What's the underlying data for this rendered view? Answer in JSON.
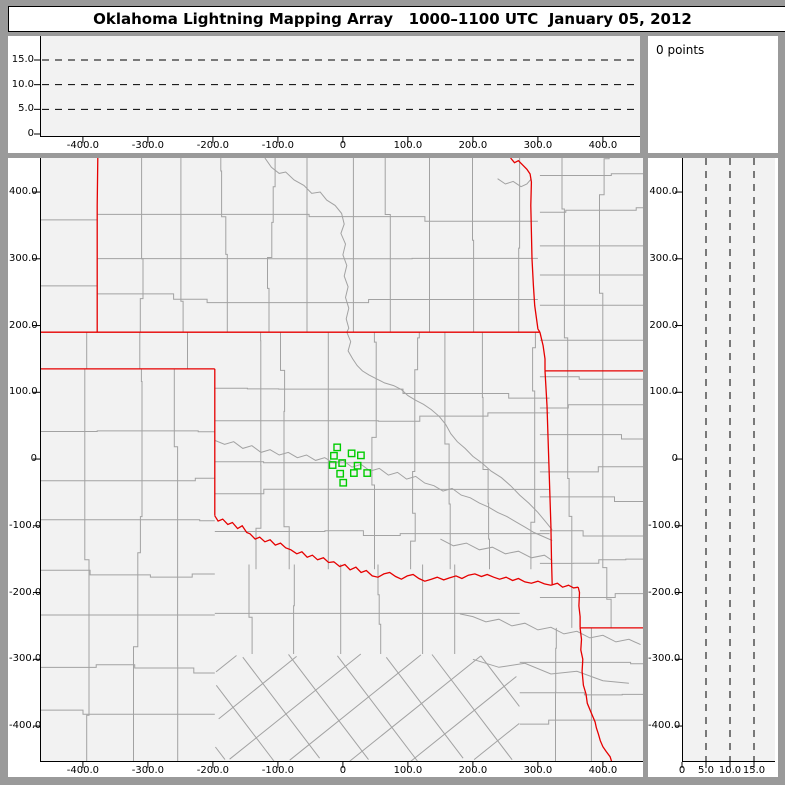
{
  "title": "Oklahoma Lightning Mapping Array   1000–1100 UTC  January 05, 2012",
  "points_panel": {
    "label": "0 points"
  },
  "colors": {
    "frame": "#9a9a9a",
    "panel": "#ffffff",
    "plot_bg": "#f2f2f2",
    "county": "#a2a2a2",
    "state_border": "#e60000",
    "station": "#00cc00",
    "ink": "#000000"
  },
  "ew_axis": {
    "tick_values": [
      -400,
      -300,
      -200,
      -100,
      0,
      100,
      200,
      300,
      400
    ],
    "tick_labels": [
      "-400.0",
      "-300.0",
      "-200.0",
      "-100.0",
      "0",
      "100.0",
      "200.0",
      "300.0",
      "400.0"
    ],
    "range_km": [
      -466,
      462
    ]
  },
  "ns_axis": {
    "tick_values": [
      400,
      300,
      200,
      100,
      0,
      -100,
      -200,
      -300,
      -400
    ],
    "tick_labels": [
      "400.0",
      "300.0",
      "200.0",
      "100.0",
      "0",
      "-100.0",
      "-200.0",
      "-300.0",
      "-400.0"
    ],
    "range_km": [
      -454,
      451
    ]
  },
  "alt_axis": {
    "tick_values": [
      0,
      5,
      10,
      15
    ],
    "tick_labels": [
      "0",
      "5.0",
      "10.0",
      "15.0"
    ],
    "dashed_values": [
      5,
      10,
      15
    ],
    "range_km": [
      0,
      20
    ]
  },
  "map": {
    "state_borders": [
      [
        [
          -377,
          451
        ],
        [
          -378,
          380
        ],
        [
          -378,
          300
        ],
        [
          -378,
          190
        ]
      ],
      [
        [
          -466,
          190
        ],
        [
          303,
          190
        ]
      ],
      [
        [
          -466,
          135
        ],
        [
          -197,
          135
        ]
      ],
      [
        [
          -197,
          135
        ],
        [
          -197,
          -85
        ]
      ],
      [
        [
          -197,
          -85
        ],
        [
          -192,
          -93
        ],
        [
          -185,
          -90
        ],
        [
          -177,
          -98
        ],
        [
          -170,
          -95
        ],
        [
          -162,
          -104
        ],
        [
          -155,
          -100
        ],
        [
          -148,
          -110
        ],
        [
          -143,
          -112
        ],
        [
          -135,
          -120
        ],
        [
          -128,
          -117
        ],
        [
          -120,
          -124
        ],
        [
          -112,
          -121
        ],
        [
          -104,
          -129
        ],
        [
          -96,
          -126
        ],
        [
          -88,
          -133
        ],
        [
          -80,
          -136
        ],
        [
          -71,
          -142
        ],
        [
          -63,
          -139
        ],
        [
          -55,
          -147
        ],
        [
          -47,
          -144
        ],
        [
          -39,
          -151
        ],
        [
          -30,
          -148
        ],
        [
          -22,
          -155
        ],
        [
          -14,
          -154
        ],
        [
          -5,
          -161
        ],
        [
          3,
          -158
        ],
        [
          11,
          -166
        ],
        [
          20,
          -162
        ],
        [
          28,
          -170
        ],
        [
          36,
          -167
        ],
        [
          45,
          -175
        ],
        [
          54,
          -177
        ],
        [
          63,
          -172
        ],
        [
          72,
          -170
        ],
        [
          81,
          -176
        ],
        [
          90,
          -180
        ],
        [
          99,
          -175
        ],
        [
          108,
          -173
        ],
        [
          117,
          -179
        ],
        [
          126,
          -183
        ],
        [
          136,
          -180
        ],
        [
          145,
          -177
        ],
        [
          155,
          -181
        ],
        [
          164,
          -178
        ],
        [
          174,
          -175
        ],
        [
          183,
          -179
        ],
        [
          193,
          -174
        ],
        [
          203,
          -172
        ],
        [
          213,
          -176
        ],
        [
          222,
          -173
        ],
        [
          232,
          -177
        ],
        [
          241,
          -180
        ],
        [
          251,
          -177
        ],
        [
          261,
          -182
        ],
        [
          270,
          -179
        ],
        [
          280,
          -184
        ],
        [
          290,
          -186
        ],
        [
          300,
          -183
        ],
        [
          310,
          -187
        ],
        [
          320,
          -189
        ],
        [
          330,
          -186
        ],
        [
          338,
          -192
        ],
        [
          347,
          -189
        ],
        [
          355,
          -193
        ],
        [
          362,
          -192
        ]
      ],
      [
        [
          258,
          451
        ],
        [
          264,
          444
        ],
        [
          270,
          447
        ],
        [
          277,
          440
        ],
        [
          283,
          434
        ],
        [
          288,
          427
        ],
        [
          290,
          415
        ],
        [
          289,
          380
        ],
        [
          290,
          340
        ],
        [
          291,
          300
        ],
        [
          293,
          260
        ],
        [
          295,
          230
        ],
        [
          300,
          195
        ],
        [
          303,
          190
        ]
      ],
      [
        [
          303,
          190
        ],
        [
          308,
          170
        ],
        [
          311,
          150
        ],
        [
          311,
          132
        ]
      ],
      [
        [
          311,
          132
        ],
        [
          462,
          132
        ]
      ],
      [
        [
          311,
          132
        ],
        [
          314,
          80
        ],
        [
          316,
          20
        ],
        [
          318,
          -40
        ],
        [
          320,
          -100
        ],
        [
          321,
          -150
        ],
        [
          322,
          -189
        ]
      ],
      [
        [
          362,
          -192
        ],
        [
          364,
          -200
        ],
        [
          363,
          -220
        ],
        [
          365,
          -236
        ],
        [
          365,
          -253
        ]
      ],
      [
        [
          365,
          -253
        ],
        [
          462,
          -253
        ]
      ],
      [
        [
          365,
          -253
        ],
        [
          367,
          -270
        ],
        [
          366,
          -286
        ],
        [
          369,
          -300
        ],
        [
          368,
          -318
        ],
        [
          370,
          -339
        ],
        [
          374,
          -352
        ],
        [
          376,
          -366
        ],
        [
          382,
          -380
        ],
        [
          388,
          -394
        ],
        [
          390,
          -403
        ],
        [
          393,
          -412
        ],
        [
          396,
          -422
        ],
        [
          400,
          -431
        ],
        [
          405,
          -438
        ],
        [
          411,
          -446
        ],
        [
          413,
          -452
        ],
        [
          416,
          -462
        ]
      ]
    ],
    "rivers": [
      [
        [
          -120,
          451
        ],
        [
          -110,
          437
        ],
        [
          -98,
          428
        ],
        [
          -88,
          430
        ],
        [
          -75,
          418
        ],
        [
          -60,
          410
        ],
        [
          -48,
          398
        ],
        [
          -35,
          400
        ],
        [
          -25,
          388
        ],
        [
          -12,
          380
        ],
        [
          -2,
          368
        ],
        [
          2,
          352
        ],
        [
          -3,
          338
        ],
        [
          4,
          322
        ],
        [
          0,
          306
        ],
        [
          6,
          290
        ],
        [
          2,
          274
        ],
        [
          8,
          258
        ],
        [
          4,
          242
        ],
        [
          9,
          226
        ],
        [
          5,
          210
        ],
        [
          9,
          196
        ],
        [
          6,
          190
        ],
        [
          12,
          176
        ],
        [
          8,
          162
        ],
        [
          15,
          150
        ],
        [
          22,
          140
        ],
        [
          30,
          132
        ],
        [
          40,
          126
        ],
        [
          52,
          120
        ],
        [
          64,
          114
        ],
        [
          78,
          110
        ],
        [
          90,
          104
        ],
        [
          100,
          95
        ],
        [
          112,
          88
        ],
        [
          124,
          82
        ],
        [
          136,
          74
        ],
        [
          148,
          64
        ],
        [
          158,
          52
        ],
        [
          166,
          38
        ],
        [
          176,
          26
        ],
        [
          188,
          16
        ],
        [
          200,
          4
        ],
        [
          214,
          -6
        ],
        [
          228,
          -18
        ],
        [
          244,
          -28
        ],
        [
          258,
          -40
        ],
        [
          272,
          -54
        ],
        [
          286,
          -66
        ],
        [
          300,
          -80
        ],
        [
          312,
          -94
        ],
        [
          322,
          -106
        ]
      ],
      [
        [
          -197,
          28
        ],
        [
          -182,
          22
        ],
        [
          -168,
          26
        ],
        [
          -154,
          16
        ],
        [
          -140,
          20
        ],
        [
          -126,
          10
        ],
        [
          -112,
          14
        ],
        [
          -98,
          6
        ],
        [
          -84,
          10
        ],
        [
          -70,
          2
        ],
        [
          -56,
          6
        ],
        [
          -42,
          -2
        ],
        [
          -28,
          2
        ],
        [
          -14,
          -6
        ],
        [
          0,
          -2
        ],
        [
          14,
          -12
        ],
        [
          28,
          -8
        ],
        [
          42,
          -18
        ],
        [
          56,
          -14
        ],
        [
          70,
          -24
        ],
        [
          84,
          -20
        ],
        [
          98,
          -30
        ],
        [
          112,
          -26
        ],
        [
          126,
          -36
        ],
        [
          140,
          -40
        ],
        [
          154,
          -48
        ],
        [
          168,
          -44
        ],
        [
          182,
          -54
        ],
        [
          196,
          -58
        ],
        [
          210,
          -66
        ],
        [
          224,
          -72
        ],
        [
          238,
          -80
        ],
        [
          252,
          -86
        ],
        [
          266,
          -94
        ],
        [
          280,
          -102
        ],
        [
          294,
          -110
        ],
        [
          308,
          -116
        ],
        [
          322,
          -122
        ]
      ],
      [
        [
          150,
          -120
        ],
        [
          170,
          -130
        ],
        [
          190,
          -126
        ],
        [
          210,
          -136
        ],
        [
          230,
          -132
        ],
        [
          250,
          -142
        ],
        [
          270,
          -138
        ],
        [
          290,
          -148
        ],
        [
          310,
          -144
        ],
        [
          322,
          -152
        ]
      ],
      [
        [
          180,
          -232
        ],
        [
          200,
          -236
        ],
        [
          220,
          -244
        ],
        [
          240,
          -240
        ],
        [
          260,
          -250
        ],
        [
          280,
          -246
        ],
        [
          300,
          -256
        ],
        [
          320,
          -252
        ],
        [
          340,
          -262
        ],
        [
          360,
          -258
        ],
        [
          380,
          -268
        ],
        [
          400,
          -264
        ],
        [
          420,
          -274
        ],
        [
          440,
          -270
        ],
        [
          458,
          -278
        ]
      ],
      [
        [
          200,
          -300
        ],
        [
          240,
          -312
        ],
        [
          280,
          -306
        ],
        [
          320,
          -322
        ],
        [
          360,
          -318
        ],
        [
          400,
          -332
        ],
        [
          440,
          -336
        ]
      ],
      [
        [
          238,
          420
        ],
        [
          250,
          412
        ],
        [
          262,
          416
        ],
        [
          274,
          408
        ],
        [
          283,
          412
        ],
        [
          290,
          420
        ]
      ]
    ],
    "stations_km": [
      [
        -8.8,
        17.5
      ],
      [
        13.4,
        8.5
      ],
      [
        27.7,
        5.5
      ],
      [
        -13.8,
        4.9
      ],
      [
        -1.1,
        -6.0
      ],
      [
        -15.8,
        -9.0
      ],
      [
        22.6,
        -10.0
      ],
      [
        -4.2,
        -22.0
      ],
      [
        16.9,
        -21.0
      ],
      [
        37.4,
        -21.0
      ],
      [
        0.5,
        -35.5
      ]
    ]
  },
  "chart_data": [
    {
      "type": "scatter",
      "title": "Altitude vs east-west distance (km)",
      "x_range": [
        -466,
        462
      ],
      "y_range": [
        0,
        20
      ],
      "x_ticks": [
        -400,
        -300,
        -200,
        -100,
        0,
        100,
        200,
        300,
        400
      ],
      "y_ticks": [
        0,
        5,
        10,
        15
      ],
      "gridlines": "dashed horizontal at 5, 10, 15 km",
      "points": []
    },
    {
      "type": "scatter",
      "title": "Plan-view map with LMA stations (km east / km north)",
      "x_range": [
        -466,
        462
      ],
      "y_range": [
        -454,
        451
      ],
      "x_ticks": [
        -400,
        -300,
        -200,
        -100,
        0,
        100,
        200,
        300,
        400
      ],
      "y_ticks": [
        400,
        300,
        200,
        100,
        0,
        -100,
        -200,
        -300,
        -400
      ],
      "station_markers": [
        [
          -8.8,
          17.5
        ],
        [
          13.4,
          8.5
        ],
        [
          27.7,
          5.5
        ],
        [
          -13.8,
          4.9
        ],
        [
          -1.1,
          -6.0
        ],
        [
          -15.8,
          -9.0
        ],
        [
          22.6,
          -10.0
        ],
        [
          -4.2,
          -22.0
        ],
        [
          16.9,
          -21.0
        ],
        [
          37.4,
          -21.0
        ],
        [
          0.5,
          -35.5
        ]
      ],
      "lightning_points": 0
    },
    {
      "type": "scatter",
      "title": "Altitude vs north-south distance (km)",
      "x_range": [
        0,
        20
      ],
      "y_range": [
        -454,
        451
      ],
      "x_ticks": [
        0,
        5,
        10,
        15
      ],
      "y_ticks": [
        400,
        300,
        200,
        100,
        0,
        -100,
        -200,
        -300,
        -400
      ],
      "gridlines": "dashed vertical at 5, 10, 15 km",
      "points": []
    }
  ]
}
